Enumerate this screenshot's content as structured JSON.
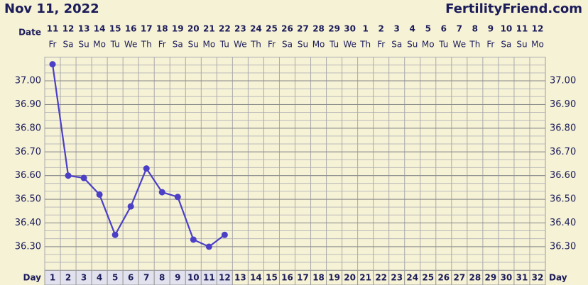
{
  "chart_data": {
    "type": "line",
    "title": "Nov 11, 2022",
    "site": "FertilityFriend.com",
    "date_label": "Date",
    "day_label": "Day",
    "dates": [
      11,
      12,
      13,
      14,
      15,
      16,
      17,
      18,
      19,
      20,
      21,
      22,
      23,
      24,
      25,
      26,
      27,
      28,
      29,
      30,
      1,
      2,
      3,
      4,
      5,
      6,
      7,
      8,
      9,
      10,
      11,
      12
    ],
    "weekdays": [
      "Fr",
      "Sa",
      "Su",
      "Mo",
      "Tu",
      "We",
      "Th",
      "Fr",
      "Sa",
      "Su",
      "Mo",
      "Tu",
      "We",
      "Th",
      "Fr",
      "Sa",
      "Su",
      "Mo",
      "Tu",
      "We",
      "Th",
      "Fr",
      "Sa",
      "Su",
      "Mo",
      "Tu",
      "We",
      "Th",
      "Fr",
      "Sa",
      "Su",
      "Mo"
    ],
    "categories": [
      1,
      2,
      3,
      4,
      5,
      6,
      7,
      8,
      9,
      10,
      11,
      12,
      13,
      14,
      15,
      16,
      17,
      18,
      19,
      20,
      21,
      22,
      23,
      24,
      25,
      26,
      27,
      28,
      29,
      30,
      31,
      32
    ],
    "values": [
      37.07,
      36.6,
      36.59,
      36.52,
      36.35,
      36.47,
      36.63,
      36.53,
      36.51,
      36.33,
      36.3,
      36.35,
      null,
      null,
      null,
      null,
      null,
      null,
      null,
      null,
      null,
      null,
      null,
      null,
      null,
      null,
      null,
      null,
      null,
      null,
      null,
      null
    ],
    "color": "#4a3fc6",
    "ylim": [
      36.2,
      37.1
    ],
    "yticks": [
      {
        "value": 36.3,
        "label": "36.30"
      },
      {
        "value": 36.4,
        "label": "36.40"
      },
      {
        "value": 36.5,
        "label": "36.50"
      },
      {
        "value": 36.6,
        "label": "36.60"
      },
      {
        "value": 36.7,
        "label": "36.70"
      },
      {
        "value": 36.8,
        "label": "36.80"
      },
      {
        "value": 36.9,
        "label": "36.90"
      },
      {
        "value": 37.0,
        "label": "37.00"
      }
    ],
    "grid": true
  }
}
